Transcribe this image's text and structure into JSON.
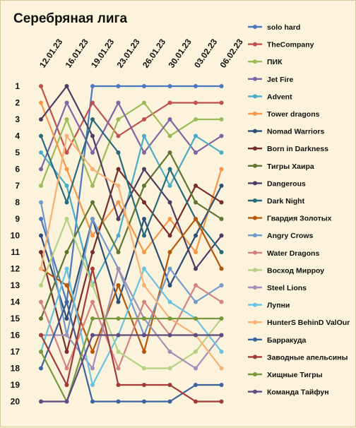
{
  "chart_data": {
    "type": "line",
    "title": "Серебряная лига",
    "categories": [
      "12.01.23",
      "16.01.23",
      "19.01.23",
      "23.01.23",
      "26.01.23",
      "30.01.23",
      "03.02.23",
      "06.02.23"
    ],
    "y_ticks": [
      1,
      2,
      3,
      4,
      5,
      6,
      7,
      8,
      9,
      10,
      11,
      12,
      13,
      14,
      15,
      16,
      17,
      18,
      19,
      20
    ],
    "ylim": [
      20,
      1
    ],
    "y_reversed": true,
    "grid": false,
    "legend_position": "right",
    "series": [
      {
        "name": "solo hard",
        "color": "#4a78c0",
        "values": [
          9,
          14,
          1,
          1,
          1,
          1,
          1,
          1
        ]
      },
      {
        "name": "TheCompany",
        "color": "#c0504d",
        "values": [
          1,
          5,
          2,
          4,
          3,
          2,
          2,
          2
        ]
      },
      {
        "name": "ПИК",
        "color": "#9bbb59",
        "values": [
          7,
          3,
          7,
          3,
          2,
          4,
          3,
          3
        ]
      },
      {
        "name": "Jet Fire",
        "color": "#8064a2",
        "values": [
          6,
          2,
          5,
          2,
          5,
          3,
          5,
          4
        ]
      },
      {
        "name": "Advent",
        "color": "#4bacc6",
        "values": [
          5,
          7,
          13,
          10,
          4,
          7,
          4,
          5
        ]
      },
      {
        "name": "Tower dragons",
        "color": "#f79646",
        "values": [
          2,
          6,
          10,
          8,
          11,
          9,
          11,
          6
        ]
      },
      {
        "name": "Nomad Warriors",
        "color": "#2c4d75",
        "values": [
          10,
          15,
          9,
          14,
          9,
          13,
          10,
          7
        ]
      },
      {
        "name": "Born in Darkness",
        "color": "#772c2a",
        "values": [
          11,
          17,
          11,
          6,
          8,
          10,
          7,
          8
        ]
      },
      {
        "name": "Тигры Хаира",
        "color": "#5f7530",
        "values": [
          15,
          11,
          8,
          11,
          7,
          5,
          8,
          9
        ]
      },
      {
        "name": "Dangerous",
        "color": "#4d3b62",
        "values": [
          3,
          1,
          4,
          9,
          6,
          8,
          12,
          10
        ]
      },
      {
        "name": "Dark Night",
        "color": "#276a7c",
        "values": [
          4,
          8,
          3,
          5,
          10,
          6,
          9,
          11
        ]
      },
      {
        "name": "Гвардия Золотых",
        "color": "#b65708",
        "values": [
          12,
          13,
          17,
          13,
          17,
          11,
          9,
          12
        ]
      },
      {
        "name": "Angry Crows",
        "color": "#729aca",
        "values": [
          8,
          16,
          9,
          12,
          16,
          12,
          14,
          13
        ]
      },
      {
        "name": "Water Dragons",
        "color": "#d4817f",
        "values": [
          14,
          18,
          14,
          18,
          14,
          16,
          13,
          14
        ]
      },
      {
        "name": "Восход Мирроу",
        "color": "#b7d184",
        "values": [
          13,
          9,
          13,
          17,
          18,
          18,
          17,
          15
        ]
      },
      {
        "name": "Steel Lions",
        "color": "#a18fb7",
        "values": [
          16,
          16,
          18,
          12,
          15,
          17,
          18,
          16
        ]
      },
      {
        "name": "Лупни",
        "color": "#68c3e0",
        "values": [
          17,
          12,
          19,
          16,
          12,
          14,
          15,
          17
        ]
      },
      {
        "name": "HunterS BehinD ValOur",
        "color": "#f9b074",
        "values": [
          12,
          4,
          6,
          7,
          13,
          15,
          16,
          18
        ]
      },
      {
        "name": "Барракуда",
        "color": "#3a63a0",
        "values": [
          18,
          14,
          20,
          20,
          20,
          20,
          19,
          19
        ]
      },
      {
        "name": "Заводные апельсины",
        "color": "#a33a36",
        "values": [
          16,
          19,
          12,
          19,
          19,
          19,
          20,
          20
        ]
      },
      {
        "name": "Хищные Тигры",
        "color": "#77983c",
        "values": [
          17,
          20,
          15,
          15,
          15,
          15,
          15,
          15
        ]
      },
      {
        "name": "Команда Тайфун",
        "color": "#5e4a80",
        "values": [
          20,
          20,
          16,
          16,
          16,
          16,
          16,
          16
        ]
      }
    ]
  }
}
